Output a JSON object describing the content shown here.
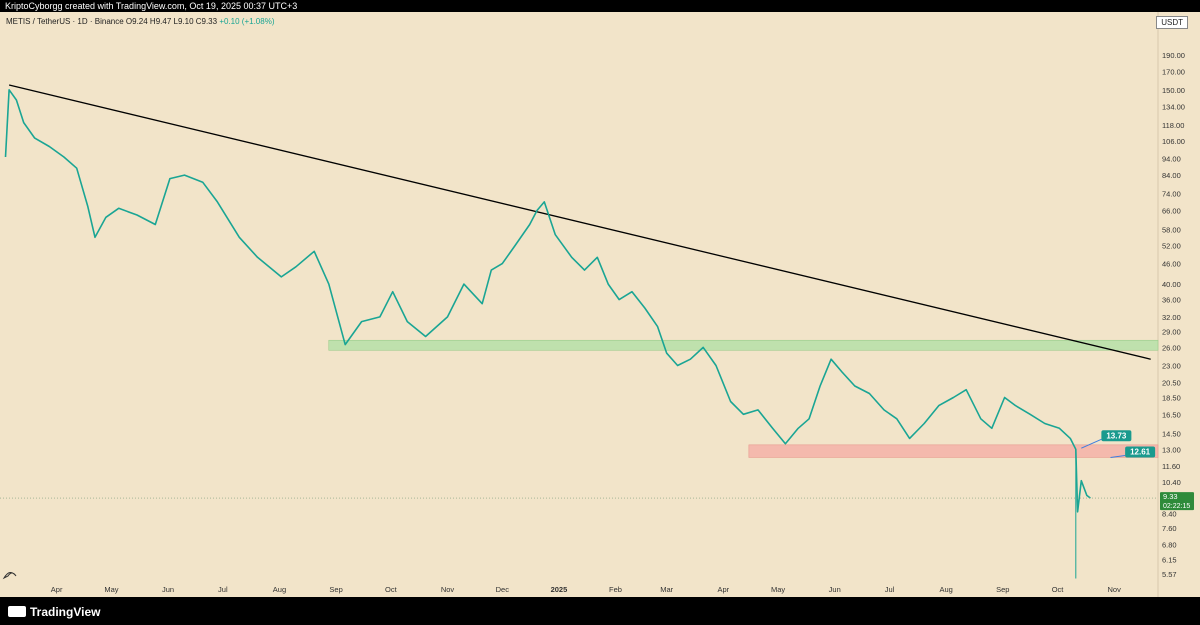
{
  "header": {
    "credit": "KriptoCyborgg created with TradingView.com, Oct 19, 2025 00:37 UTC+3"
  },
  "symbol": {
    "name": "METIS / TetherUS · 1D · Binance",
    "ohlc": "O9.24  H9.47  L9.10  C9.33",
    "change": "+0.10 (+1.08%)"
  },
  "currency": "USDT",
  "brand": "TradingView",
  "colors": {
    "background": "#f2e4c9",
    "candle": "#1aa594",
    "trendline": "#000000",
    "resistance_zone": "#b6e0a8",
    "support_zone": "#f4b2a8",
    "price_badge": "#2e8b3a",
    "callout": "#1a9a8e"
  },
  "chart_data": {
    "type": "line",
    "scale": "log",
    "ylim": [
      5.2,
      230
    ],
    "y_ticks": [
      "190.00",
      "170.00",
      "150.00",
      "134.00",
      "118.00",
      "106.00",
      "94.00",
      "84.00",
      "74.00",
      "66.00",
      "58.00",
      "52.00",
      "46.00",
      "40.00",
      "36.00",
      "32.00",
      "29.00",
      "26.00",
      "23.00",
      "20.50",
      "18.50",
      "16.50",
      "14.50",
      "13.00",
      "11.60",
      "10.40",
      "8.40",
      "7.60",
      "6.80",
      "6.15",
      "5.57"
    ],
    "x_ticks": [
      "Apr",
      "May",
      "Jun",
      "Jul",
      "Aug",
      "Sep",
      "Oct",
      "Nov",
      "Dec",
      "2025",
      "Feb",
      "Mar",
      "Apr",
      "May",
      "Jun",
      "Jul",
      "Aug",
      "Sep",
      "Oct",
      "Nov"
    ],
    "x_range": [
      "2024-03-01",
      "2025-11-25"
    ],
    "price_path": [
      [
        "2024-03-04",
        95
      ],
      [
        "2024-03-06",
        150
      ],
      [
        "2024-03-10",
        140
      ],
      [
        "2024-03-14",
        120
      ],
      [
        "2024-03-20",
        108
      ],
      [
        "2024-03-28",
        102
      ],
      [
        "2024-04-05",
        95
      ],
      [
        "2024-04-12",
        88
      ],
      [
        "2024-04-18",
        68
      ],
      [
        "2024-04-22",
        55
      ],
      [
        "2024-04-28",
        63
      ],
      [
        "2024-05-05",
        67
      ],
      [
        "2024-05-15",
        64
      ],
      [
        "2024-05-25",
        60
      ],
      [
        "2024-06-02",
        82
      ],
      [
        "2024-06-10",
        84
      ],
      [
        "2024-06-20",
        80
      ],
      [
        "2024-06-28",
        70
      ],
      [
        "2024-07-10",
        55
      ],
      [
        "2024-07-20",
        48
      ],
      [
        "2024-08-02",
        42
      ],
      [
        "2024-08-10",
        45
      ],
      [
        "2024-08-20",
        50
      ],
      [
        "2024-08-28",
        40
      ],
      [
        "2024-09-06",
        26.5
      ],
      [
        "2024-09-15",
        31
      ],
      [
        "2024-09-25",
        32
      ],
      [
        "2024-10-02",
        38
      ],
      [
        "2024-10-10",
        31
      ],
      [
        "2024-10-20",
        28
      ],
      [
        "2024-11-01",
        32
      ],
      [
        "2024-11-10",
        40
      ],
      [
        "2024-11-20",
        35
      ],
      [
        "2024-11-25",
        44
      ],
      [
        "2024-12-01",
        46
      ],
      [
        "2024-12-08",
        52
      ],
      [
        "2024-12-16",
        60
      ],
      [
        "2024-12-20",
        66
      ],
      [
        "2024-12-24",
        70
      ],
      [
        "2024-12-30",
        56
      ],
      [
        "2025-01-08",
        48
      ],
      [
        "2025-01-15",
        44
      ],
      [
        "2025-01-22",
        48
      ],
      [
        "2025-01-28",
        40
      ],
      [
        "2025-02-03",
        36
      ],
      [
        "2025-02-10",
        38
      ],
      [
        "2025-02-17",
        34
      ],
      [
        "2025-02-24",
        30
      ],
      [
        "2025-03-01",
        25
      ],
      [
        "2025-03-07",
        23
      ],
      [
        "2025-03-14",
        24
      ],
      [
        "2025-03-21",
        26
      ],
      [
        "2025-03-28",
        23
      ],
      [
        "2025-04-05",
        18
      ],
      [
        "2025-04-12",
        16.5
      ],
      [
        "2025-04-20",
        17
      ],
      [
        "2025-04-28",
        15
      ],
      [
        "2025-05-05",
        13.5
      ],
      [
        "2025-05-12",
        15
      ],
      [
        "2025-05-18",
        16
      ],
      [
        "2025-05-24",
        20
      ],
      [
        "2025-05-30",
        24
      ],
      [
        "2025-06-05",
        22
      ],
      [
        "2025-06-12",
        20
      ],
      [
        "2025-06-20",
        19
      ],
      [
        "2025-06-28",
        17
      ],
      [
        "2025-07-05",
        16
      ],
      [
        "2025-07-12",
        14
      ],
      [
        "2025-07-20",
        15.5
      ],
      [
        "2025-07-28",
        17.5
      ],
      [
        "2025-08-05",
        18.5
      ],
      [
        "2025-08-12",
        19.5
      ],
      [
        "2025-08-20",
        16
      ],
      [
        "2025-08-26",
        15
      ],
      [
        "2025-09-02",
        18.5
      ],
      [
        "2025-09-08",
        17.5
      ],
      [
        "2025-09-16",
        16.5
      ],
      [
        "2025-09-24",
        15.5
      ],
      [
        "2025-10-02",
        15
      ],
      [
        "2025-10-08",
        14
      ],
      [
        "2025-10-11",
        13
      ],
      [
        "2025-10-12",
        8.5
      ],
      [
        "2025-10-14",
        10.5
      ],
      [
        "2025-10-17",
        9.5
      ],
      [
        "2025-10-19",
        9.33
      ]
    ],
    "trendline": [
      [
        "2024-03-06",
        155
      ],
      [
        "2025-11-21",
        24
      ]
    ],
    "zones": [
      {
        "from": "2024-08-28",
        "to": "2025-11-25",
        "low": 25.5,
        "high": 27.3,
        "color": "#b6e0a8"
      },
      {
        "from": "2025-04-15",
        "to": "2025-11-25",
        "low": 12.3,
        "high": 13.4,
        "color": "#f4b2a8"
      }
    ],
    "callouts": [
      {
        "label": "13.73",
        "date": "2025-10-25",
        "price": 14.4
      },
      {
        "label": "12.61",
        "date": "2025-11-07",
        "price": 12.9
      }
    ],
    "last_price": {
      "value": 9.33,
      "label": "9.33",
      "countdown": "02:22:15"
    }
  }
}
